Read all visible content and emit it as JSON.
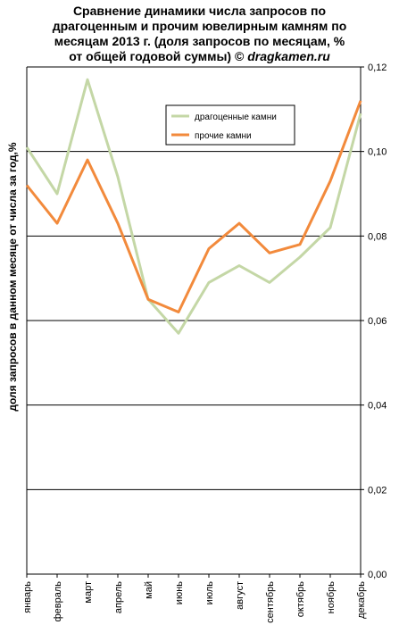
{
  "title": {
    "line1": "Сравнение динамики числа запросов по",
    "line2": "драгоценным и прочим ювелирным камням по",
    "line3": "месяцам 2013 г. (доля запросов по месяцам, %",
    "line4_text": "от общей годовой суммы) © ",
    "line4_site": "dragkamen.ru"
  },
  "chart_data": {
    "type": "line",
    "categories": [
      "январь",
      "февраль",
      "март",
      "апрель",
      "май",
      "июнь",
      "июль",
      "август",
      "сентябрь",
      "октябрь",
      "ноябрь",
      "декабрь"
    ],
    "series": [
      {
        "name": "драгоценные камни",
        "color": "#c4d7a6",
        "values": [
          0.101,
          0.09,
          0.117,
          0.094,
          0.065,
          0.057,
          0.069,
          0.073,
          0.069,
          0.075,
          0.082,
          0.109
        ]
      },
      {
        "name": "прочие камни",
        "color": "#f28a3c",
        "values": [
          0.092,
          0.083,
          0.098,
          0.083,
          0.065,
          0.062,
          0.077,
          0.083,
          0.076,
          0.078,
          0.093,
          0.112
        ]
      }
    ],
    "ylabel": "доля запросов в данном месяце от числа за год,%",
    "xlabel": "",
    "ylim": [
      0,
      0.12
    ],
    "yticks": [
      "0,00",
      "0,02",
      "0,04",
      "0,06",
      "0,08",
      "0,10",
      "0,12"
    ],
    "grid": true,
    "legend_position": "top-right inside"
  }
}
